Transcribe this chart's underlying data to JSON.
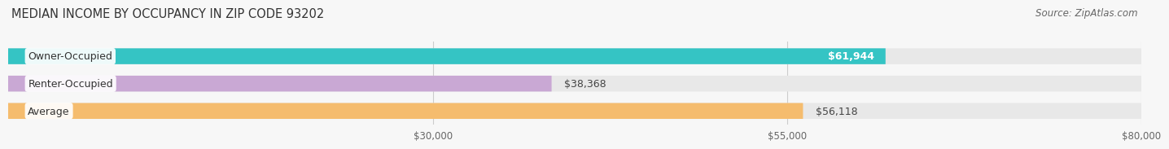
{
  "title": "MEDIAN INCOME BY OCCUPANCY IN ZIP CODE 93202",
  "source": "Source: ZipAtlas.com",
  "categories": [
    "Owner-Occupied",
    "Renter-Occupied",
    "Average"
  ],
  "values": [
    61944,
    38368,
    56118
  ],
  "bar_colors": [
    "#35c4c4",
    "#c9a8d4",
    "#f5bc6e"
  ],
  "value_labels": [
    "$61,944",
    "$38,368",
    "$56,118"
  ],
  "value_label_inside": [
    true,
    false,
    false
  ],
  "xlim": [
    0,
    80000
  ],
  "x_max_display": 80000,
  "xticks": [
    30000,
    55000,
    80000
  ],
  "xtick_labels": [
    "$30,000",
    "$55,000",
    "$80,000"
  ],
  "title_fontsize": 10.5,
  "source_fontsize": 8.5,
  "label_fontsize": 9,
  "tick_fontsize": 8.5,
  "bg_color": "#f7f7f7",
  "bar_bg_color": "#e8e8e8"
}
